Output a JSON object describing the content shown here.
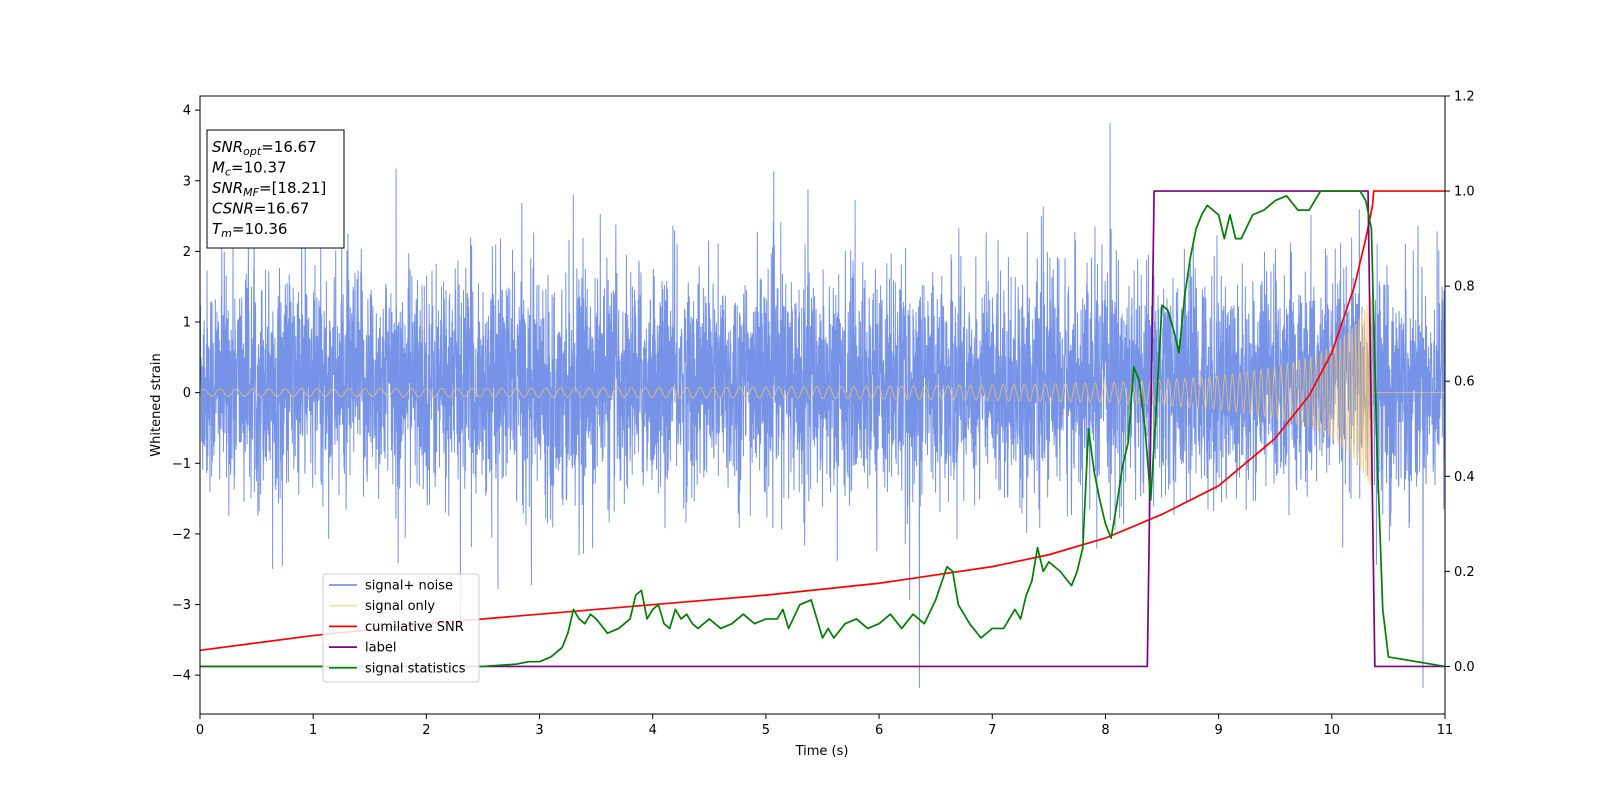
{
  "chart_data": {
    "type": "line",
    "title": "",
    "xlabel": "Time (s)",
    "ylabel": "Whitened strain",
    "xlim": [
      0,
      11
    ],
    "ylim_left": [
      -4.55,
      4.2
    ],
    "ylim_right": [
      -0.1,
      1.2
    ],
    "x_ticks": [
      0,
      1,
      2,
      3,
      4,
      5,
      6,
      7,
      8,
      9,
      10,
      11
    ],
    "y_ticks_left": [
      -4,
      -3,
      -2,
      -1,
      0,
      1,
      2,
      3,
      4
    ],
    "y_ticks_right": [
      0.0,
      0.2,
      0.4,
      0.6,
      0.8,
      1.0,
      1.2
    ],
    "y_tick_labels_left": [
      "−4",
      "−3",
      "−2",
      "−1",
      "0",
      "1",
      "2",
      "3",
      "4"
    ],
    "y_tick_labels_right": [
      "0.0",
      "0.2",
      "0.4",
      "0.6",
      "0.8",
      "1.0",
      "1.2"
    ],
    "x_tick_labels": [
      "0",
      "1",
      "2",
      "3",
      "4",
      "5",
      "6",
      "7",
      "8",
      "9",
      "10",
      "11"
    ],
    "grid": false,
    "legend_position": "lower-left",
    "annotation": {
      "lines": [
        {
          "sym": "SNR",
          "sub": "opt",
          "rest": "=16.67"
        },
        {
          "sym": "M",
          "sub": "c",
          "rest": "=10.37"
        },
        {
          "sym": "SNR",
          "sub": "MF",
          "rest": "=[18.21]"
        },
        {
          "sym": "CSNR",
          "sub": "",
          "rest": "=16.67"
        },
        {
          "sym": "T",
          "sub": "m",
          "rest": "=10.36"
        }
      ]
    },
    "series": [
      {
        "name": "signal+ noise",
        "axis": "left",
        "color": "#6f8de6",
        "kind": "noise_band",
        "description_values": {
          "typical_range": [
            -1.5,
            1.8
          ],
          "peak_max": 3.82,
          "peak_min": -4.18
        }
      },
      {
        "name": "signal only",
        "axis": "left",
        "color": "#f5c36b",
        "kind": "chirp",
        "amplitude_envelope": {
          "x": [
            0,
            2,
            4,
            6,
            7,
            8,
            8.5,
            9,
            9.5,
            9.8,
            10,
            10.2,
            10.3,
            10.36,
            11
          ],
          "y": [
            0.05,
            0.06,
            0.07,
            0.09,
            0.11,
            0.14,
            0.18,
            0.24,
            0.36,
            0.5,
            0.65,
            0.95,
            1.2,
            1.4,
            0
          ]
        }
      },
      {
        "name": "cumilative SNR",
        "axis": "right",
        "color": "#ff0000",
        "x": [
          0,
          1,
          2,
          3,
          4,
          5,
          6,
          7,
          7.5,
          8,
          8.5,
          9,
          9.5,
          9.8,
          10,
          10.2,
          10.3,
          10.36,
          10.37,
          11
        ],
        "y": [
          0.034,
          0.065,
          0.09,
          0.11,
          0.13,
          0.15,
          0.175,
          0.21,
          0.235,
          0.27,
          0.32,
          0.38,
          0.48,
          0.57,
          0.66,
          0.8,
          0.9,
          0.97,
          1.0,
          1.0
        ]
      },
      {
        "name": "label",
        "axis": "right",
        "color": "#800080",
        "x": [
          0,
          8.37,
          8.43,
          10.32,
          10.38,
          11
        ],
        "y": [
          0,
          0,
          1,
          1,
          0,
          0
        ]
      },
      {
        "name": "signal statistics",
        "axis": "right",
        "color": "#008000",
        "x": [
          0,
          2.5,
          2.8,
          2.9,
          3.0,
          3.1,
          3.2,
          3.25,
          3.3,
          3.35,
          3.4,
          3.45,
          3.5,
          3.6,
          3.7,
          3.8,
          3.85,
          3.9,
          3.95,
          4.0,
          4.05,
          4.1,
          4.15,
          4.2,
          4.25,
          4.3,
          4.35,
          4.4,
          4.5,
          4.6,
          4.7,
          4.8,
          4.85,
          4.9,
          5.0,
          5.1,
          5.15,
          5.2,
          5.3,
          5.4,
          5.5,
          5.55,
          5.6,
          5.7,
          5.8,
          5.85,
          5.9,
          6.0,
          6.1,
          6.2,
          6.3,
          6.4,
          6.5,
          6.6,
          6.65,
          6.7,
          6.8,
          6.9,
          7.0,
          7.1,
          7.2,
          7.25,
          7.3,
          7.35,
          7.4,
          7.45,
          7.5,
          7.6,
          7.7,
          7.75,
          7.8,
          7.85,
          7.9,
          7.95,
          8.0,
          8.05,
          8.1,
          8.15,
          8.2,
          8.25,
          8.3,
          8.35,
          8.4,
          8.45,
          8.5,
          8.55,
          8.6,
          8.65,
          8.7,
          8.75,
          8.8,
          8.85,
          8.9,
          8.95,
          9.0,
          9.05,
          9.1,
          9.15,
          9.2,
          9.3,
          9.4,
          9.5,
          9.6,
          9.7,
          9.8,
          9.9,
          10.0,
          10.1,
          10.2,
          10.25,
          10.3,
          10.35,
          10.4,
          10.45,
          10.5,
          11
        ],
        "y": [
          0,
          0,
          0.005,
          0.01,
          0.01,
          0.02,
          0.04,
          0.07,
          0.12,
          0.1,
          0.09,
          0.11,
          0.1,
          0.07,
          0.08,
          0.1,
          0.15,
          0.16,
          0.1,
          0.12,
          0.13,
          0.09,
          0.08,
          0.12,
          0.1,
          0.11,
          0.09,
          0.08,
          0.1,
          0.08,
          0.09,
          0.11,
          0.1,
          0.09,
          0.1,
          0.1,
          0.12,
          0.08,
          0.13,
          0.14,
          0.06,
          0.08,
          0.06,
          0.09,
          0.1,
          0.09,
          0.08,
          0.09,
          0.11,
          0.08,
          0.11,
          0.09,
          0.14,
          0.21,
          0.2,
          0.13,
          0.09,
          0.06,
          0.08,
          0.08,
          0.12,
          0.1,
          0.15,
          0.18,
          0.25,
          0.2,
          0.22,
          0.2,
          0.17,
          0.2,
          0.25,
          0.5,
          0.41,
          0.35,
          0.3,
          0.27,
          0.34,
          0.42,
          0.47,
          0.63,
          0.6,
          0.5,
          0.35,
          0.55,
          0.76,
          0.75,
          0.71,
          0.66,
          0.78,
          0.86,
          0.92,
          0.95,
          0.97,
          0.96,
          0.95,
          0.9,
          0.95,
          0.9,
          0.9,
          0.95,
          0.96,
          0.98,
          0.99,
          0.96,
          0.96,
          1.0,
          1.0,
          1.0,
          1.0,
          1.0,
          0.98,
          0.92,
          0.45,
          0.12,
          0.02,
          0
        ]
      }
    ]
  }
}
